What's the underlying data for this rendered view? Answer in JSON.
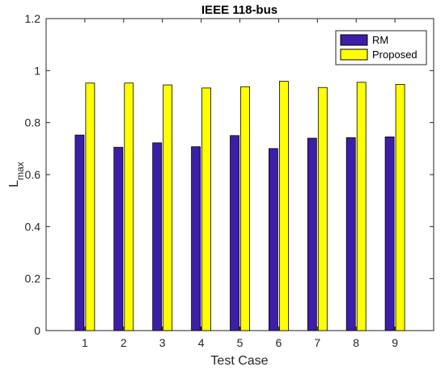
{
  "chart_data": {
    "type": "bar",
    "title": "IEEE 118-bus",
    "xlabel": "Test Case",
    "ylabel": "L",
    "ylabel_subscript": "max",
    "categories": [
      "1",
      "2",
      "3",
      "4",
      "5",
      "6",
      "7",
      "8",
      "9"
    ],
    "series": [
      {
        "name": "RM",
        "color": "#3d1ea8",
        "values": [
          0.752,
          0.705,
          0.722,
          0.707,
          0.75,
          0.7,
          0.74,
          0.742,
          0.745
        ]
      },
      {
        "name": "Proposed",
        "color": "#ffff00",
        "values": [
          0.952,
          0.952,
          0.945,
          0.933,
          0.938,
          0.959,
          0.935,
          0.955,
          0.947
        ]
      }
    ],
    "ylim": [
      0,
      1.2
    ],
    "yticks": [
      "0",
      "0.2",
      "0.4",
      "0.6",
      "0.8",
      "1",
      "1.2"
    ],
    "grid": false,
    "legend_position": "top-right"
  }
}
